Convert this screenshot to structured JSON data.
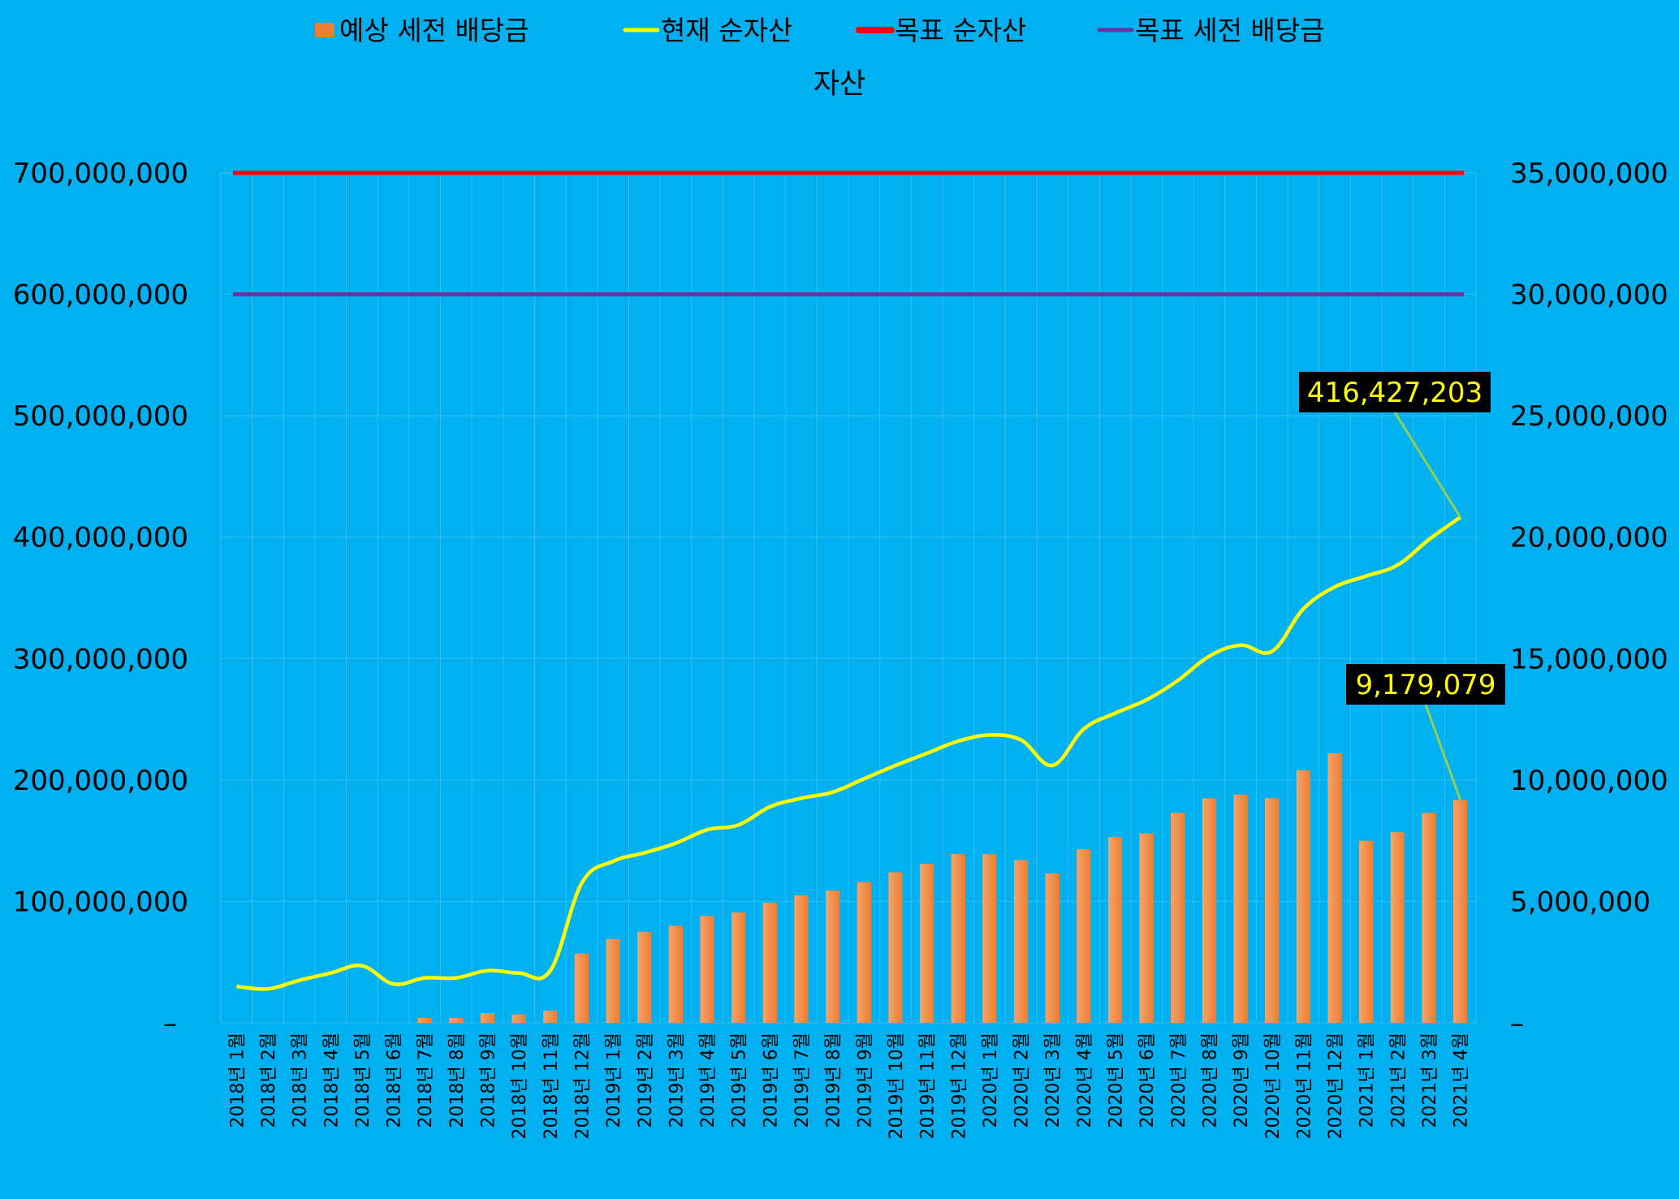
{
  "chart_data": {
    "type": "bar",
    "title": "자산",
    "legend_position": "top",
    "grid": true,
    "categories": [
      "2018년 1월",
      "2018년 2월",
      "2018년 3월",
      "2018년 4월",
      "2018년 5월",
      "2018년 6월",
      "2018년 7월",
      "2018년 8월",
      "2018년 9월",
      "2018년 10월",
      "2018년 11월",
      "2018년 12월",
      "2019년 1월",
      "2019년 2월",
      "2019년 3월",
      "2019년 4월",
      "2019년 5월",
      "2019년 6월",
      "2019년 7월",
      "2019년 8월",
      "2019년 9월",
      "2019년 10월",
      "2019년 11월",
      "2019년 12월",
      "2020년 1월",
      "2020년 2월",
      "2020년 3월",
      "2020년 4월",
      "2020년 5월",
      "2020년 6월",
      "2020년 7월",
      "2020년 8월",
      "2020년 9월",
      "2020년 10월",
      "2020년 11월",
      "2020년 12월",
      "2021년 1월",
      "2021년 2월",
      "2021년 3월",
      "2021년 4월"
    ],
    "y_left": {
      "min": 0,
      "max": 700000000,
      "ticks": [
        "–",
        "100,000,000",
        "200,000,000",
        "300,000,000",
        "400,000,000",
        "500,000,000",
        "600,000,000",
        "700,000,000"
      ]
    },
    "y_right": {
      "min": 0,
      "max": 35000000,
      "ticks": [
        "–",
        "5,000,000",
        "10,000,000",
        "15,000,000",
        "20,000,000",
        "25,000,000",
        "30,000,000",
        "35,000,000"
      ]
    },
    "series": [
      {
        "name": "예상 세전 배당금",
        "type": "bar",
        "axis": "right",
        "color": "#ed7d31",
        "values": [
          0,
          0,
          0,
          0,
          0,
          0,
          200000,
          200000,
          400000,
          350000,
          500000,
          2850000,
          3450000,
          3750000,
          4000000,
          4400000,
          4550000,
          4950000,
          5250000,
          5450000,
          5800000,
          6200000,
          6550000,
          6950000,
          6950000,
          6700000,
          6150000,
          7150000,
          7650000,
          7800000,
          8650000,
          9250000,
          9400000,
          9250000,
          10400000,
          11100000,
          7500000,
          7850000,
          8650000,
          9179079
        ]
      },
      {
        "name": "현재 순자산",
        "type": "line",
        "axis": "left",
        "color": "#ffff00",
        "values": [
          30000000,
          28000000,
          35000000,
          41000000,
          47000000,
          32000000,
          37000000,
          37000000,
          43000000,
          41000000,
          43000000,
          115000000,
          133000000,
          140000000,
          148000000,
          159000000,
          163000000,
          178000000,
          185000000,
          190000000,
          201000000,
          212000000,
          222000000,
          232000000,
          237000000,
          233000000,
          212000000,
          242000000,
          255000000,
          266000000,
          282000000,
          302000000,
          311000000,
          306000000,
          341000000,
          359000000,
          368000000,
          377000000,
          398000000,
          416427203
        ]
      },
      {
        "name": "목표 순자산",
        "type": "line",
        "axis": "left",
        "color": "#ff0000",
        "value": 700000000
      },
      {
        "name": "목표 세전 배당금",
        "type": "line",
        "axis": "right",
        "color": "#7030a0",
        "value": 30000000
      }
    ],
    "annotations": [
      "416,427,203",
      "9,179,079"
    ]
  }
}
